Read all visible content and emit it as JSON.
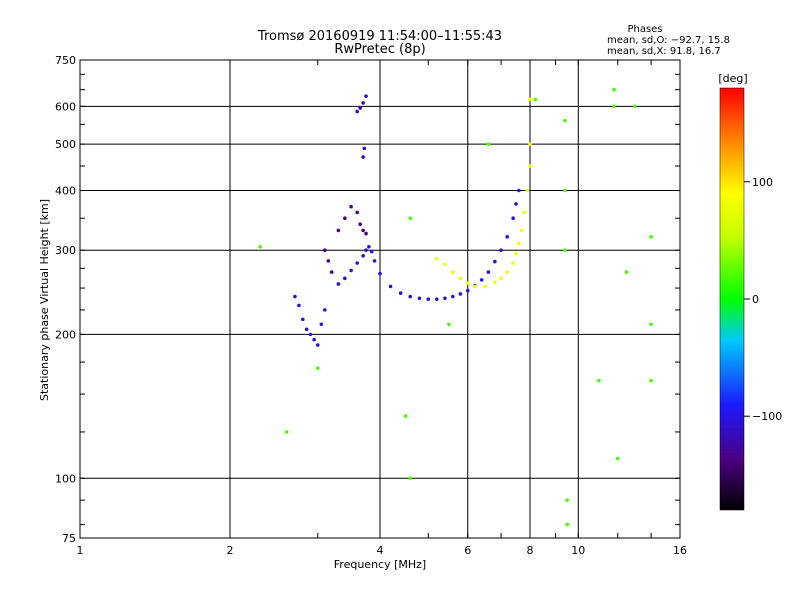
{
  "chart_data": {
    "type": "scatter",
    "title": "Tromsø 20160919 11:54:00–11:55:43",
    "subtitle": "RwPretec (8p)",
    "xlabel": "Frequency [MHz]",
    "ylabel": "Stationary phase Virtual Height [km]",
    "x_scale": "log",
    "y_scale": "log",
    "xlim": [
      1,
      16
    ],
    "ylim": [
      75,
      750
    ],
    "x_ticks": [
      1,
      2,
      4,
      6,
      8,
      10,
      16
    ],
    "x_tick_labels": [
      "1",
      "2",
      "4",
      "6",
      "8",
      "10",
      "16"
    ],
    "y_ticks": [
      75,
      100,
      200,
      300,
      400,
      500,
      600,
      750
    ],
    "y_tick_labels": [
      "75",
      "100",
      "200",
      "300",
      "400",
      "500",
      "600",
      "750"
    ],
    "grid": true,
    "phases": {
      "title": "Phases",
      "line_o": "mean, sd,O: −92.7, 15.8",
      "line_x": "mean, sd,X:  91.8, 16.7"
    },
    "colorbar": {
      "label": "[deg]",
      "range": [
        -180,
        180
      ],
      "ticks": [
        100,
        0,
        -100
      ],
      "tick_labels": [
        "100",
        "0",
        "−100"
      ],
      "colormap": "rainbow"
    },
    "traces": [
      {
        "name": "",
        "phase_deg": -110,
        "points": [
          [
            3.3,
            255
          ],
          [
            3.4,
            262
          ],
          [
            3.5,
            272
          ],
          [
            3.6,
            282
          ],
          [
            3.7,
            292
          ],
          [
            3.75,
            300
          ],
          [
            3.8,
            305
          ],
          [
            3.85,
            298
          ],
          [
            3.9,
            285
          ],
          [
            4.0,
            268
          ],
          [
            4.2,
            252
          ],
          [
            4.4,
            244
          ],
          [
            4.6,
            240
          ],
          [
            4.8,
            238
          ],
          [
            5.0,
            237
          ],
          [
            5.2,
            237
          ],
          [
            5.4,
            238
          ],
          [
            5.6,
            240
          ],
          [
            5.8,
            243
          ],
          [
            6.0,
            247
          ],
          [
            6.2,
            253
          ],
          [
            6.4,
            260
          ],
          [
            6.6,
            270
          ],
          [
            6.8,
            284
          ],
          [
            7.0,
            300
          ],
          [
            7.2,
            320
          ],
          [
            7.4,
            350
          ],
          [
            7.5,
            375
          ],
          [
            7.6,
            400
          ]
        ]
      },
      {
        "name": "",
        "phase_deg": 90,
        "points": [
          [
            5.2,
            288
          ],
          [
            5.4,
            280
          ],
          [
            5.6,
            270
          ],
          [
            5.8,
            262
          ],
          [
            6.0,
            256
          ],
          [
            6.2,
            252
          ],
          [
            6.5,
            252
          ],
          [
            6.8,
            257
          ],
          [
            7.0,
            262
          ],
          [
            7.2,
            270
          ],
          [
            7.4,
            282
          ],
          [
            7.5,
            295
          ],
          [
            7.6,
            310
          ],
          [
            7.7,
            330
          ],
          [
            7.8,
            360
          ],
          [
            7.9,
            400
          ],
          [
            8.0,
            450
          ],
          [
            8.0,
            500
          ],
          [
            8.0,
            620
          ]
        ]
      },
      {
        "name": "",
        "phase_deg": -140,
        "points": [
          [
            3.1,
            300
          ],
          [
            3.15,
            285
          ],
          [
            3.2,
            270
          ],
          [
            3.3,
            330
          ],
          [
            3.4,
            350
          ],
          [
            3.5,
            370
          ],
          [
            3.6,
            360
          ],
          [
            3.65,
            340
          ],
          [
            3.7,
            330
          ],
          [
            3.75,
            325
          ]
        ]
      },
      {
        "name": "",
        "phase_deg": -110,
        "points": [
          [
            2.7,
            240
          ],
          [
            2.75,
            230
          ],
          [
            2.8,
            215
          ],
          [
            2.85,
            205
          ],
          [
            2.9,
            200
          ],
          [
            2.95,
            195
          ],
          [
            3.0,
            190
          ],
          [
            3.05,
            210
          ],
          [
            3.1,
            225
          ]
        ]
      },
      {
        "name": "",
        "phase_deg": -120,
        "points": [
          [
            3.6,
            585
          ],
          [
            3.65,
            595
          ],
          [
            3.7,
            610
          ],
          [
            3.75,
            630
          ],
          [
            3.7,
            470
          ],
          [
            3.72,
            490
          ]
        ]
      },
      {
        "name": "",
        "phase_deg": 20,
        "points": [
          [
            2.3,
            305
          ],
          [
            2.6,
            125
          ],
          [
            3.0,
            170
          ],
          [
            4.5,
            135
          ],
          [
            4.6,
            100
          ],
          [
            4.6,
            350
          ],
          [
            5.5,
            210
          ],
          [
            6.6,
            500
          ],
          [
            8.2,
            620
          ],
          [
            9.4,
            560
          ],
          [
            9.4,
            400
          ],
          [
            9.4,
            300
          ],
          [
            9.5,
            90
          ],
          [
            9.5,
            80
          ],
          [
            11.0,
            160
          ],
          [
            11.8,
            650
          ],
          [
            11.8,
            600
          ],
          [
            12.0,
            110
          ],
          [
            12.5,
            270
          ],
          [
            13.0,
            600
          ],
          [
            14.0,
            320
          ],
          [
            14.0,
            210
          ],
          [
            14.0,
            160
          ]
        ]
      }
    ]
  }
}
